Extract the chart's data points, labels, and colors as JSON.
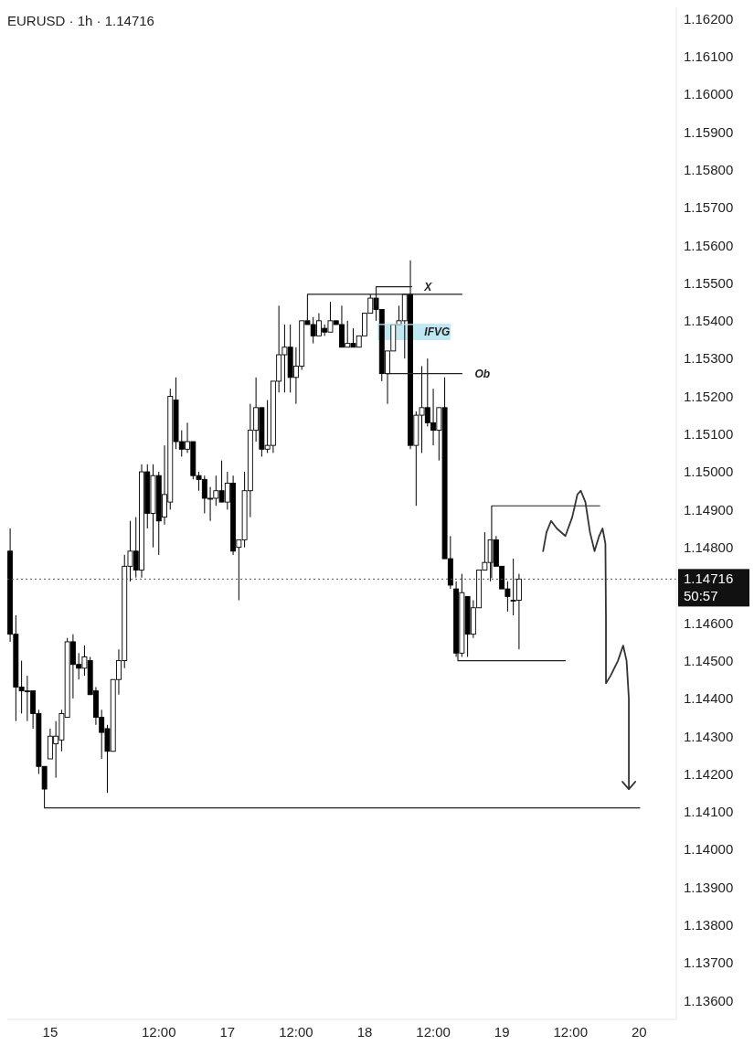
{
  "chart_data": {
    "type": "candlestick",
    "title": "EURUSD · 1h · 1.14716",
    "xlim": [
      "--06-15T09:30",
      "--06-20T06:30"
    ],
    "xticks": [
      {
        "value": "--06-15T17:00",
        "label": "15"
      },
      {
        "value": "--06-16T12:00",
        "label": "12:00"
      },
      {
        "value": "--06-17T00:00",
        "label": "17"
      },
      {
        "value": "--06-17T12:00",
        "label": "12:00"
      },
      {
        "value": "--06-18T00:00",
        "label": "18"
      },
      {
        "value": "--06-18T12:00",
        "label": "12:00"
      },
      {
        "value": "--06-19T00:00",
        "label": "19"
      },
      {
        "value": "--06-19T12:00",
        "label": "12:00"
      },
      {
        "value": "--06-20T00:00",
        "label": "20"
      }
    ],
    "ylim": [
      1.1355,
      1.1623
    ],
    "yticks": [
      {
        "value": 1.136,
        "label": "1.13600"
      },
      {
        "value": 1.137,
        "label": "1.13700"
      },
      {
        "value": 1.138,
        "label": "1.13800"
      },
      {
        "value": 1.139,
        "label": "1.13900"
      },
      {
        "value": 1.14,
        "label": "1.14000"
      },
      {
        "value": 1.141,
        "label": "1.14100"
      },
      {
        "value": 1.142,
        "label": "1.14200"
      },
      {
        "value": 1.143,
        "label": "1.14300"
      },
      {
        "value": 1.144,
        "label": "1.14400"
      },
      {
        "value": 1.145,
        "label": "1.14500"
      },
      {
        "value": 1.146,
        "label": "1.14600"
      },
      {
        "value": 1.148,
        "label": "1.14800"
      },
      {
        "value": 1.149,
        "label": "1.14900"
      },
      {
        "value": 1.15,
        "label": "1.15000"
      },
      {
        "value": 1.151,
        "label": "1.15100"
      },
      {
        "value": 1.152,
        "label": "1.15200"
      },
      {
        "value": 1.153,
        "label": "1.15300"
      },
      {
        "value": 1.154,
        "label": "1.15400"
      },
      {
        "value": 1.155,
        "label": "1.15500"
      },
      {
        "value": 1.156,
        "label": "1.15600"
      },
      {
        "value": 1.157,
        "label": "1.15700"
      },
      {
        "value": 1.158,
        "label": "1.15800"
      },
      {
        "value": 1.159,
        "label": "1.15900"
      },
      {
        "value": 1.16,
        "label": "1.16000"
      },
      {
        "value": 1.161,
        "label": "1.16100"
      },
      {
        "value": 1.162,
        "label": "1.16200"
      }
    ],
    "series": [
      {
        "type": "line",
        "color": "#bfe8f2",
        "x": [
          "--06-18T02:18",
          "--06-18T15:00"
        ],
        "values": [
          1.1539,
          1.1539
        ],
        "lower": [
          1.1535,
          1.1535
        ],
        "upper": [
          1.1539,
          1.1539
        ]
      },
      {
        "type": "line",
        "color": "#222222",
        "x": [
          "--06-17T14:00",
          "--06-17T14:00",
          "--06-18T17:00"
        ],
        "values": [
          1.154,
          1.1547,
          1.1547
        ]
      },
      {
        "type": "line",
        "color": "#222222",
        "x": [
          "--06-18T02:00",
          "--06-18T02:00",
          "--06-18T08:12"
        ],
        "values": [
          1.1544,
          1.1549,
          1.1549
        ]
      },
      {
        "type": "line",
        "color": "#222222",
        "x": [
          "--06-18T03:48",
          "--06-18T17:00"
        ],
        "values": [
          1.1526,
          1.1526
        ]
      },
      {
        "type": "line",
        "color": "#222222",
        "x": [
          "--06-18T22:12",
          "--06-18T22:12",
          "--06-19T17:06"
        ],
        "values": [
          1.1472,
          1.1491,
          1.1491
        ]
      },
      {
        "type": "line",
        "color": "#222222",
        "x": [
          "--06-18T16:18",
          "--06-18T16:18",
          "--06-19T11:06"
        ],
        "values": [
          1.1452,
          1.145,
          1.145
        ]
      },
      {
        "type": "line",
        "color": "#222222",
        "x": [
          "--06-15T16:00",
          "--06-20T00:06"
        ],
        "values": [
          1.1411,
          1.1411
        ]
      },
      {
        "color": "#000000",
        "x": [
          "--06-15T10:00",
          "--06-15T11:00",
          "--06-15T12:00",
          "--06-15T13:00",
          "--06-15T14:00",
          "--06-15T15:00",
          "--06-15T16:00",
          "--06-15T17:00",
          "--06-15T18:00",
          "--06-15T19:00",
          "--06-15T20:00",
          "--06-15T21:00",
          "--06-15T22:00",
          "--06-15T23:00",
          "--06-16T00:00",
          "--06-16T01:00",
          "--06-16T02:00",
          "--06-16T03:00",
          "--06-16T04:00",
          "--06-16T05:00",
          "--06-16T06:00",
          "--06-16T07:00",
          "--06-16T08:00",
          "--06-16T09:00",
          "--06-16T10:00",
          "--06-16T11:00",
          "--06-16T12:00",
          "--06-16T13:00",
          "--06-16T14:00",
          "--06-16T15:00",
          "--06-16T16:00",
          "--06-16T17:00",
          "--06-16T18:00",
          "--06-16T19:00",
          "--06-16T20:00",
          "--06-16T21:00",
          "--06-16T22:00",
          "--06-16T23:00",
          "--06-17T00:00",
          "--06-17T01:00",
          "--06-17T02:00",
          "--06-17T03:00",
          "--06-17T04:00",
          "--06-17T05:00",
          "--06-17T06:00",
          "--06-17T07:00",
          "--06-17T08:00",
          "--06-17T09:00",
          "--06-17T10:00",
          "--06-17T11:00",
          "--06-17T12:00",
          "--06-17T13:00",
          "--06-17T14:00",
          "--06-17T15:00",
          "--06-17T16:00",
          "--06-17T17:00",
          "--06-17T18:00",
          "--06-17T19:00",
          "--06-17T20:00",
          "--06-17T21:00",
          "--06-17T22:00",
          "--06-17T23:00",
          "--06-18T00:00",
          "--06-18T01:00",
          "--06-18T02:00",
          "--06-18T03:00",
          "--06-18T04:00",
          "--06-18T05:00",
          "--06-18T06:00",
          "--06-18T07:00",
          "--06-18T08:00",
          "--06-18T09:00",
          "--06-18T10:00",
          "--06-18T11:00",
          "--06-18T12:00",
          "--06-18T13:00",
          "--06-18T14:00",
          "--06-18T15:00",
          "--06-18T16:00",
          "--06-18T17:00",
          "--06-18T18:00",
          "--06-18T19:00",
          "--06-18T20:00",
          "--06-18T21:00",
          "--06-18T22:00",
          "--06-18T23:00",
          "--06-19T00:00",
          "--06-19T01:00",
          "--06-19T02:00",
          "--06-19T03:00"
        ],
        "ohlc": [
          [
            1.1479,
            1.1485,
            1.1455,
            1.1457
          ],
          [
            1.1457,
            1.1462,
            1.1434,
            1.1443
          ],
          [
            1.1443,
            1.145,
            1.1436,
            1.1442
          ],
          [
            1.1442,
            1.1446,
            1.1434,
            1.1442
          ],
          [
            1.1442,
            1.1442,
            1.1432,
            1.1436
          ],
          [
            1.1436,
            1.1437,
            1.142,
            1.1422
          ],
          [
            1.1422,
            1.1422,
            1.1411,
            1.1416
          ],
          [
            1.1424,
            1.1432,
            1.1424,
            1.143
          ],
          [
            1.1428,
            1.1434,
            1.1419,
            1.143
          ],
          [
            1.1429,
            1.1437,
            1.1426,
            1.1436
          ],
          [
            1.1435,
            1.1456,
            1.1435,
            1.1455
          ],
          [
            1.1455,
            1.1457,
            1.144,
            1.1449
          ],
          [
            1.1449,
            1.1452,
            1.1445,
            1.1448
          ],
          [
            1.1448,
            1.1454,
            1.1446,
            1.1451
          ],
          [
            1.145,
            1.1451,
            1.1441,
            1.1441
          ],
          [
            1.1442,
            1.1443,
            1.1433,
            1.1435
          ],
          [
            1.1435,
            1.1437,
            1.1424,
            1.1431
          ],
          [
            1.1432,
            1.1433,
            1.1415,
            1.1426
          ],
          [
            1.1426,
            1.1445,
            1.1426,
            1.1445
          ],
          [
            1.1445,
            1.1453,
            1.1441,
            1.145
          ],
          [
            1.145,
            1.1478,
            1.1448,
            1.1475
          ],
          [
            1.1475,
            1.1487,
            1.1471,
            1.1479
          ],
          [
            1.1479,
            1.1488,
            1.1472,
            1.1474
          ],
          [
            1.1474,
            1.1502,
            1.1472,
            1.15
          ],
          [
            1.15,
            1.1502,
            1.1485,
            1.1489
          ],
          [
            1.1489,
            1.1502,
            1.148,
            1.1499
          ],
          [
            1.1499,
            1.15,
            1.1478,
            1.1487
          ],
          [
            1.1488,
            1.1507,
            1.1486,
            1.1494
          ],
          [
            1.1492,
            1.1522,
            1.149,
            1.152
          ],
          [
            1.1519,
            1.1525,
            1.1506,
            1.1508
          ],
          [
            1.1508,
            1.1511,
            1.1504,
            1.1506
          ],
          [
            1.1506,
            1.1513,
            1.1505,
            1.1508
          ],
          [
            1.1508,
            1.1508,
            1.1498,
            1.1499
          ],
          [
            1.1499,
            1.15,
            1.1495,
            1.1498
          ],
          [
            1.1498,
            1.1499,
            1.1489,
            1.1493
          ],
          [
            1.1493,
            1.1496,
            1.1487,
            1.1493
          ],
          [
            1.1493,
            1.1499,
            1.1491,
            1.1495
          ],
          [
            1.1495,
            1.1503,
            1.1492,
            1.1492
          ],
          [
            1.1492,
            1.15,
            1.149,
            1.1497
          ],
          [
            1.1497,
            1.1499,
            1.1478,
            1.1479
          ],
          [
            1.148,
            1.1482,
            1.1466,
            1.1482
          ],
          [
            1.1482,
            1.15,
            1.148,
            1.1495
          ],
          [
            1.1495,
            1.1518,
            1.1488,
            1.1511
          ],
          [
            1.1511,
            1.1525,
            1.1508,
            1.1517
          ],
          [
            1.1517,
            1.1517,
            1.1504,
            1.1506
          ],
          [
            1.1506,
            1.1519,
            1.1505,
            1.1507
          ],
          [
            1.1507,
            1.1524,
            1.1505,
            1.1524
          ],
          [
            1.1524,
            1.1544,
            1.1521,
            1.1531
          ],
          [
            1.1531,
            1.1539,
            1.1521,
            1.1533
          ],
          [
            1.1533,
            1.1539,
            1.1521,
            1.1525
          ],
          [
            1.1525,
            1.1533,
            1.1518,
            1.1528
          ],
          [
            1.1528,
            1.154,
            1.1527,
            1.154
          ],
          [
            1.154,
            1.1541,
            1.1539,
            1.1539
          ],
          [
            1.1539,
            1.1541,
            1.1534,
            1.1536
          ],
          [
            1.1536,
            1.1542,
            1.1536,
            1.154
          ],
          [
            1.1538,
            1.1539,
            1.1536,
            1.1537
          ],
          [
            1.1537,
            1.1545,
            1.1537,
            1.154
          ],
          [
            1.154,
            1.154,
            1.1539,
            1.1539
          ],
          [
            1.1539,
            1.1544,
            1.1533,
            1.1533
          ],
          [
            1.1533,
            1.154,
            1.1533,
            1.1534
          ],
          [
            1.1534,
            1.1538,
            1.1533,
            1.1533
          ],
          [
            1.1533,
            1.1536,
            1.1533,
            1.1536
          ],
          [
            1.1536,
            1.1542,
            1.1536,
            1.1542
          ],
          [
            1.1542,
            1.1547,
            1.1542,
            1.1546
          ],
          [
            1.1546,
            1.1549,
            1.154,
            1.1543
          ],
          [
            1.1543,
            1.1543,
            1.1524,
            1.1526
          ],
          [
            1.1526,
            1.1532,
            1.1518,
            1.1532
          ],
          [
            1.1532,
            1.1539,
            1.1532,
            1.1539
          ],
          [
            1.1539,
            1.1544,
            1.1539,
            1.154
          ],
          [
            1.154,
            1.1547,
            1.153,
            1.1547
          ],
          [
            1.1547,
            1.1556,
            1.1506,
            1.1507
          ],
          [
            1.1507,
            1.1516,
            1.1491,
            1.1515
          ],
          [
            1.1515,
            1.1528,
            1.1505,
            1.1517
          ],
          [
            1.1517,
            1.153,
            1.1512,
            1.1513
          ],
          [
            1.1513,
            1.1522,
            1.1507,
            1.1511
          ],
          [
            1.1511,
            1.1517,
            1.1503,
            1.1517
          ],
          [
            1.1517,
            1.1525,
            1.1477,
            1.1477
          ],
          [
            1.1477,
            1.1483,
            1.1469,
            1.147
          ],
          [
            1.1469,
            1.1471,
            1.1451,
            1.1452
          ],
          [
            1.1452,
            1.1473,
            1.1451,
            1.1468
          ],
          [
            1.1467,
            1.1467,
            1.1451,
            1.1457
          ],
          [
            1.1457,
            1.1466,
            1.1456,
            1.1464
          ],
          [
            1.1464,
            1.1474,
            1.1464,
            1.1474
          ],
          [
            1.1474,
            1.1484,
            1.1474,
            1.1476
          ],
          [
            1.1476,
            1.1482,
            1.1471,
            1.1482
          ],
          [
            1.1482,
            1.1483,
            1.1475,
            1.1475
          ],
          [
            1.1475,
            1.1475,
            1.1469,
            1.1469
          ],
          [
            1.1469,
            1.1471,
            1.1463,
            1.1467
          ],
          [
            1.1466,
            1.1477,
            1.1462,
            1.1466
          ],
          [
            1.1466,
            1.1473,
            1.1453,
            1.14716
          ]
        ]
      },
      {
        "type": "line",
        "color": "#333333",
        "x": [
          "--06-19T07:12",
          "--06-19T07:48",
          "--06-19T08:36",
          "--06-19T09:36",
          "--06-19T11:06",
          "--06-19T12:18",
          "--06-19T13:12",
          "--06-19T13:48",
          "--06-19T14:36",
          "--06-19T15:24",
          "--06-19T16:12",
          "--06-19T17:00",
          "--06-19T17:36",
          "--06-19T18:06",
          "--06-19T18:12",
          "--06-19T18:12",
          "--06-19T19:00",
          "--06-19T20:18",
          "--06-19T21:12",
          "--06-19T21:48",
          "--06-19T22:12",
          "--06-19T22:12"
        ],
        "values": [
          1.1479,
          1.1484,
          1.1487,
          1.1485,
          1.1483,
          1.1488,
          1.1494,
          1.1495,
          1.1492,
          1.1484,
          1.1479,
          1.1483,
          1.1485,
          1.1481,
          1.146,
          1.1444,
          1.1446,
          1.145,
          1.1454,
          1.145,
          1.144,
          1.1416
        ]
      }
    ],
    "ref_lines": [
      {
        "axis": "y",
        "value": 1.14716,
        "label": "1.14716",
        "color": "#555555",
        "line_style": "dotted"
      }
    ],
    "annotations": [
      {
        "text": "X",
        "x": "--06-18T08:12",
        "y": 1.1549
      },
      {
        "text": "IFVG",
        "x": "--06-18T08:12",
        "y": 1.1537
      },
      {
        "text": "Ob",
        "x": "--06-18T17:00",
        "y": 1.1526
      },
      "50:57"
    ]
  }
}
